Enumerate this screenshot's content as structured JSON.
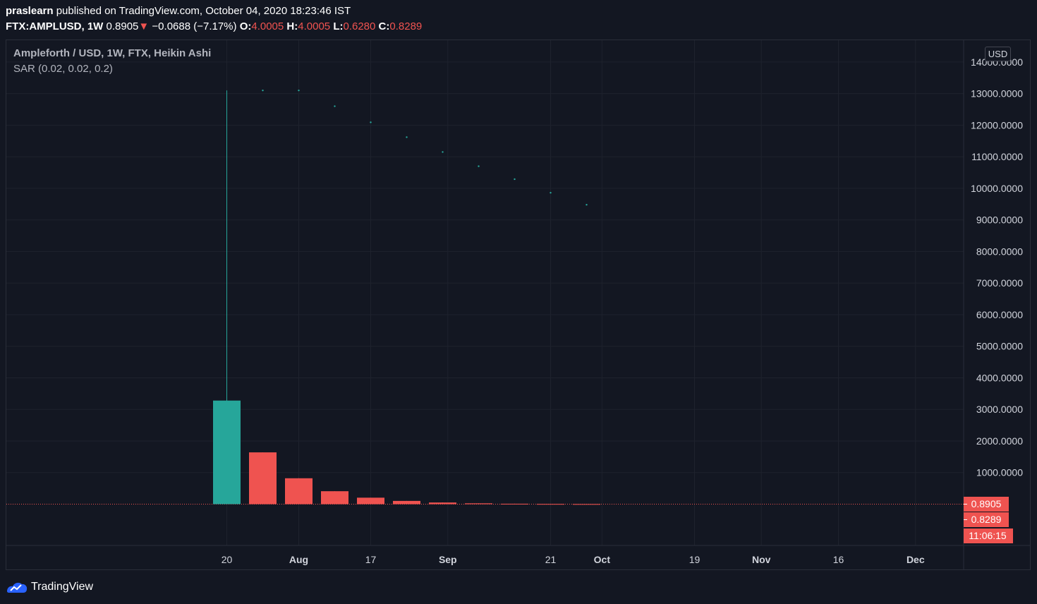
{
  "header": {
    "publisher": "praslearn",
    "published_text": "published on TradingView.com, October 04, 2020 18:23:46 IST",
    "symbol": "FTX:AMPLUSD, 1W",
    "last": "0.8905",
    "down_arrow": "▼",
    "change": "−0.0688 (−7.17%)",
    "o_label": "O:",
    "o_value": "4.0005",
    "h_label": "H:",
    "h_value": "4.0005",
    "l_label": "L:",
    "l_value": "0.6280",
    "c_label": "C:",
    "c_value": "0.8289"
  },
  "legend": {
    "title": "Ampleforth / USD, 1W, FTX, Heikin Ashi",
    "indicator": "SAR (0.02, 0.02, 0.2)"
  },
  "currency_label": "USD",
  "footer": {
    "brand": "TradingView",
    "logo_icon": "tradingview-logo-icon"
  },
  "colors": {
    "background": "#131722",
    "up": "#26a69a",
    "down": "#ef5350",
    "grid": "#1e222d",
    "sar": "#26a69a",
    "axis_text": "#d1d4dc"
  },
  "chart_data": {
    "type": "candlestick",
    "style": "Heikin Ashi",
    "x_tick_labels": [
      "20",
      "Aug",
      "17",
      "Sep",
      "21",
      "Oct",
      "19",
      "Nov",
      "16",
      "Dec"
    ],
    "y_tick_labels": [
      "14000.0000",
      "13000.0000",
      "12000.0000",
      "11000.0000",
      "10000.0000",
      "9000.0000",
      "8000.0000",
      "7000.0000",
      "6000.0000",
      "5000.0000",
      "4000.0000",
      "3000.0000",
      "2000.0000",
      "1000.0000"
    ],
    "ylim": [
      -1300,
      14300
    ],
    "grid": true,
    "candles": [
      {
        "period": "2020-07-20",
        "open": 0.5,
        "high": 13100,
        "low": 0.5,
        "close": 3280,
        "dir": "up"
      },
      {
        "period": "2020-07-27",
        "open": 1640,
        "high": 1640,
        "low": 0,
        "close": 0,
        "dir": "down"
      },
      {
        "period": "2020-08-03",
        "open": 820,
        "high": 820,
        "low": 0,
        "close": 0,
        "dir": "down"
      },
      {
        "period": "2020-08-10",
        "open": 410,
        "high": 410,
        "low": 0,
        "close": 0,
        "dir": "down"
      },
      {
        "period": "2020-08-17",
        "open": 205,
        "high": 205,
        "low": 0,
        "close": 0,
        "dir": "down"
      },
      {
        "period": "2020-08-24",
        "open": 103,
        "high": 103,
        "low": 0,
        "close": 0,
        "dir": "down"
      },
      {
        "period": "2020-08-31",
        "open": 52,
        "high": 52,
        "low": 0,
        "close": 0,
        "dir": "down"
      },
      {
        "period": "2020-09-07",
        "open": 26,
        "high": 26,
        "low": 0,
        "close": 0,
        "dir": "down"
      },
      {
        "period": "2020-09-14",
        "open": 13,
        "high": 13,
        "low": 0,
        "close": 0,
        "dir": "down"
      },
      {
        "period": "2020-09-21",
        "open": 7,
        "high": 7,
        "low": 0,
        "close": 0,
        "dir": "down"
      },
      {
        "period": "2020-09-28",
        "open": 4,
        "high": 4,
        "low": 0.6,
        "close": 0.83,
        "dir": "down"
      }
    ],
    "sar": [
      {
        "period": "2020-07-27",
        "value": 13100
      },
      {
        "period": "2020-08-03",
        "value": 13100
      },
      {
        "period": "2020-08-10",
        "value": 12600
      },
      {
        "period": "2020-08-17",
        "value": 12090
      },
      {
        "period": "2020-08-24",
        "value": 11620
      },
      {
        "period": "2020-08-31",
        "value": 11150
      },
      {
        "period": "2020-09-07",
        "value": 10700
      },
      {
        "period": "2020-09-14",
        "value": 10290
      },
      {
        "period": "2020-09-21",
        "value": 9860
      },
      {
        "period": "2020-09-28",
        "value": 9480
      }
    ],
    "price_labels": [
      {
        "text": "0.8905",
        "value": 0.8905
      },
      {
        "text": "0.8289",
        "value": 0.8289
      },
      {
        "text": "11:06:15",
        "value": 0.8289
      }
    ],
    "last_price_line": 0.8905
  }
}
